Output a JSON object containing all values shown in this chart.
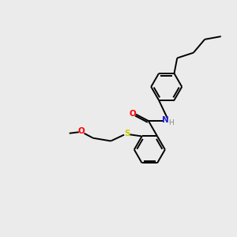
{
  "background_color": "#ebebeb",
  "bond_color": "#000000",
  "figsize": [
    3.0,
    3.0
  ],
  "dpi": 100,
  "atom_colors": {
    "O": "#ff0000",
    "N": "#2222cc",
    "S": "#cccc00",
    "H": "#888888",
    "C": "#000000"
  },
  "lw": 1.4,
  "ring_r": 0.52,
  "xlim": [
    0,
    8
  ],
  "ylim": [
    0,
    8
  ]
}
